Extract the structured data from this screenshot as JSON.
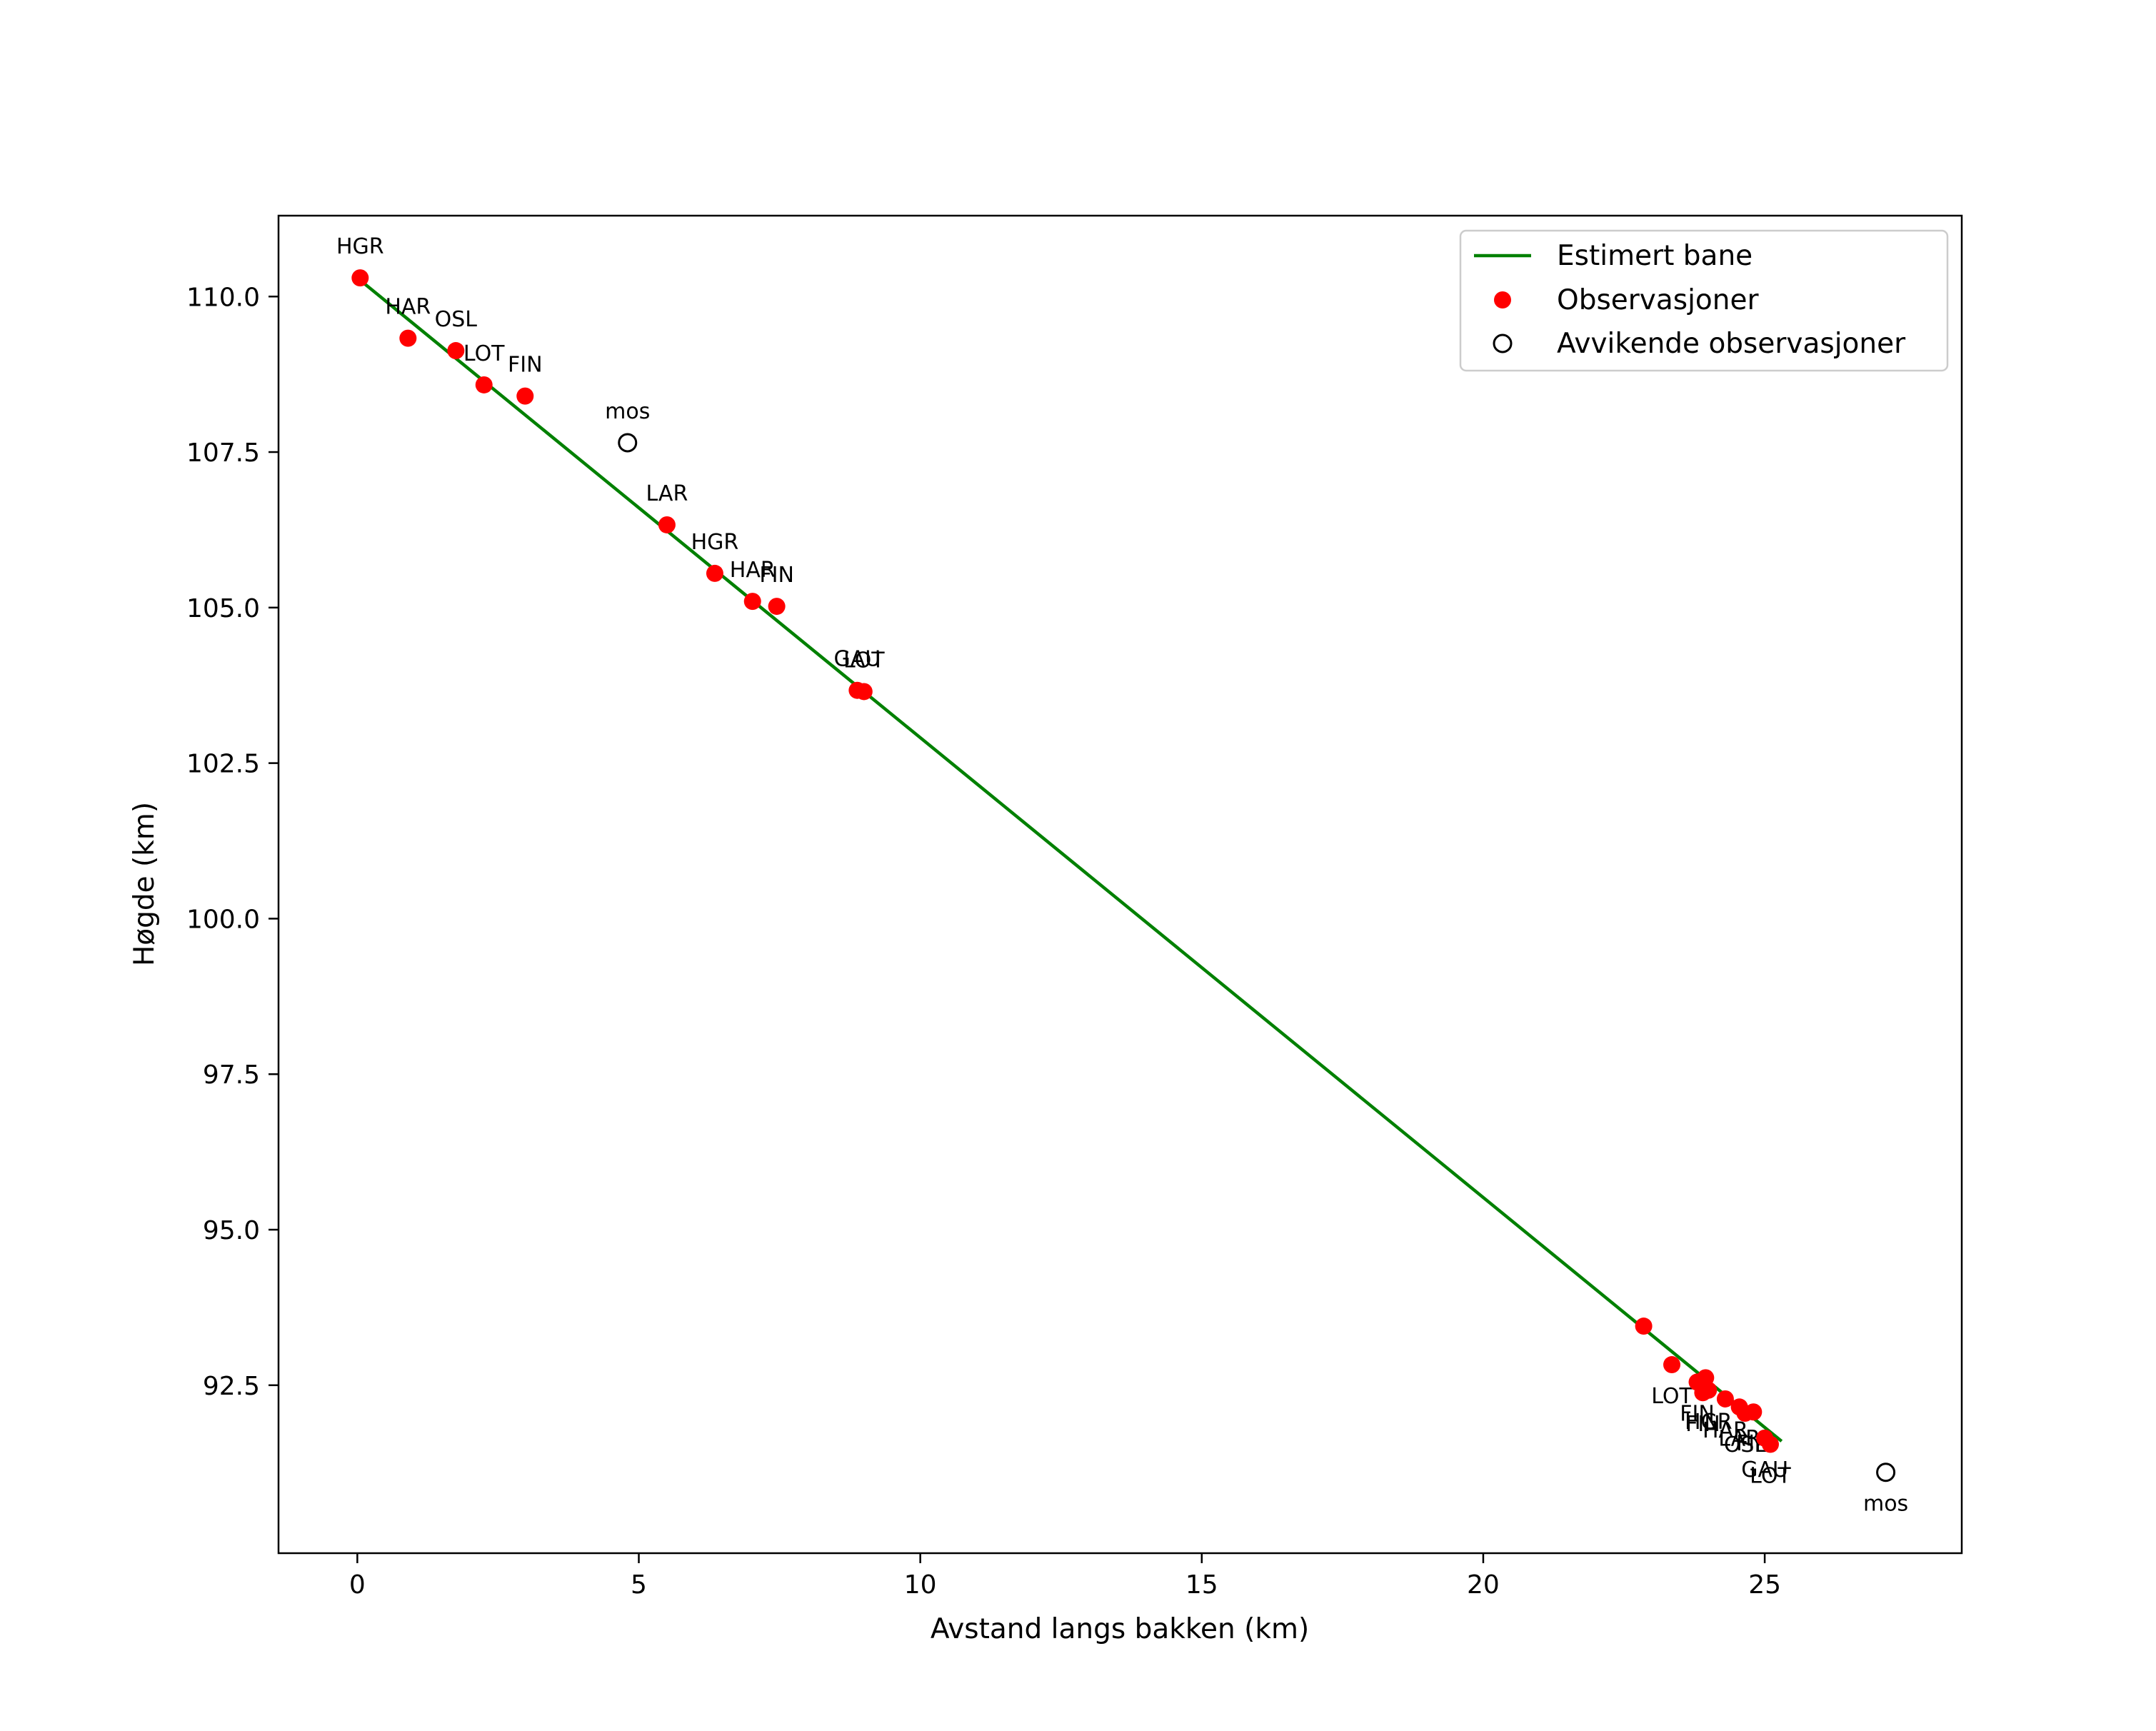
{
  "chart_data": {
    "type": "scatter",
    "title": "",
    "xlabel": "Avstand langs bakken (km)",
    "ylabel": "Høgde (km)",
    "xlim": [
      -1.4,
      28.5
    ],
    "ylim": [
      89.8,
      111.3
    ],
    "x_ticks": [
      0,
      5,
      10,
      15,
      20,
      25
    ],
    "y_ticks": [
      92.5,
      95.0,
      97.5,
      100.0,
      102.5,
      105.0,
      107.5,
      110.0
    ],
    "grid": false,
    "legend_position": "top-right",
    "colors": {
      "line": "#008000",
      "observation": "#ff0000",
      "outlier_edge": "#000000"
    },
    "legend": [
      {
        "label": "Estimert bane",
        "kind": "line"
      },
      {
        "label": "Observasjoner",
        "kind": "observation"
      },
      {
        "label": "Avvikende observasjoner",
        "kind": "outlier"
      }
    ],
    "series": [
      {
        "name": "Estimert bane",
        "kind": "line",
        "x": [
          0.0,
          25.3
        ],
        "y": [
          110.3,
          91.6
        ]
      },
      {
        "name": "Observasjoner",
        "kind": "observation",
        "points": [
          {
            "x": 0.05,
            "y": 110.3,
            "label": "HGR",
            "label_pos": "above"
          },
          {
            "x": 0.9,
            "y": 109.33,
            "label": "HAR",
            "label_pos": "above"
          },
          {
            "x": 1.75,
            "y": 109.13,
            "label": "OSL",
            "label_pos": "above"
          },
          {
            "x": 2.25,
            "y": 108.58,
            "label": "LOT",
            "label_pos": "above"
          },
          {
            "x": 2.98,
            "y": 108.4,
            "label": "FIN",
            "label_pos": "above"
          },
          {
            "x": 5.5,
            "y": 106.33,
            "label": "LAR",
            "label_pos": "above"
          },
          {
            "x": 6.35,
            "y": 105.55,
            "label": "HGR",
            "label_pos": "above"
          },
          {
            "x": 7.02,
            "y": 105.1,
            "label": "HAR",
            "label_pos": "above"
          },
          {
            "x": 7.45,
            "y": 105.02,
            "label": "FIN",
            "label_pos": "above"
          },
          {
            "x": 8.88,
            "y": 103.67,
            "label": "GAU",
            "label_pos": "above"
          },
          {
            "x": 9.0,
            "y": 103.65,
            "label": "LOT",
            "label_pos": "above"
          },
          {
            "x": 22.85,
            "y": 93.45,
            "label": "",
            "label_pos": "above"
          },
          {
            "x": 23.35,
            "y": 92.83,
            "label": "LOT",
            "label_pos": "below"
          },
          {
            "x": 23.8,
            "y": 92.55,
            "label": "FIN",
            "label_pos": "below"
          },
          {
            "x": 23.95,
            "y": 92.62,
            "label": "",
            "label_pos": "below"
          },
          {
            "x": 24.0,
            "y": 92.42,
            "label": "HGR",
            "label_pos": "below"
          },
          {
            "x": 23.9,
            "y": 92.38,
            "label": "FIN",
            "label_pos": "below"
          },
          {
            "x": 24.3,
            "y": 92.28,
            "label": "HAR",
            "label_pos": "below"
          },
          {
            "x": 24.55,
            "y": 92.15,
            "label": "LAR",
            "label_pos": "below"
          },
          {
            "x": 24.65,
            "y": 92.05,
            "label": "OSL",
            "label_pos": "below"
          },
          {
            "x": 24.8,
            "y": 92.07,
            "label": "FIN",
            "label_pos": "below"
          },
          {
            "x": 25.0,
            "y": 91.65,
            "label": "GAU",
            "label_pos": "below"
          },
          {
            "x": 25.1,
            "y": 91.55,
            "label": "LOT",
            "label_pos": "below"
          }
        ]
      },
      {
        "name": "Avvikende observasjoner",
        "kind": "outlier",
        "points": [
          {
            "x": 4.8,
            "y": 107.65,
            "label": "mos",
            "label_pos": "above"
          },
          {
            "x": 27.15,
            "y": 91.1,
            "label": "mos",
            "label_pos": "below"
          }
        ]
      }
    ]
  }
}
